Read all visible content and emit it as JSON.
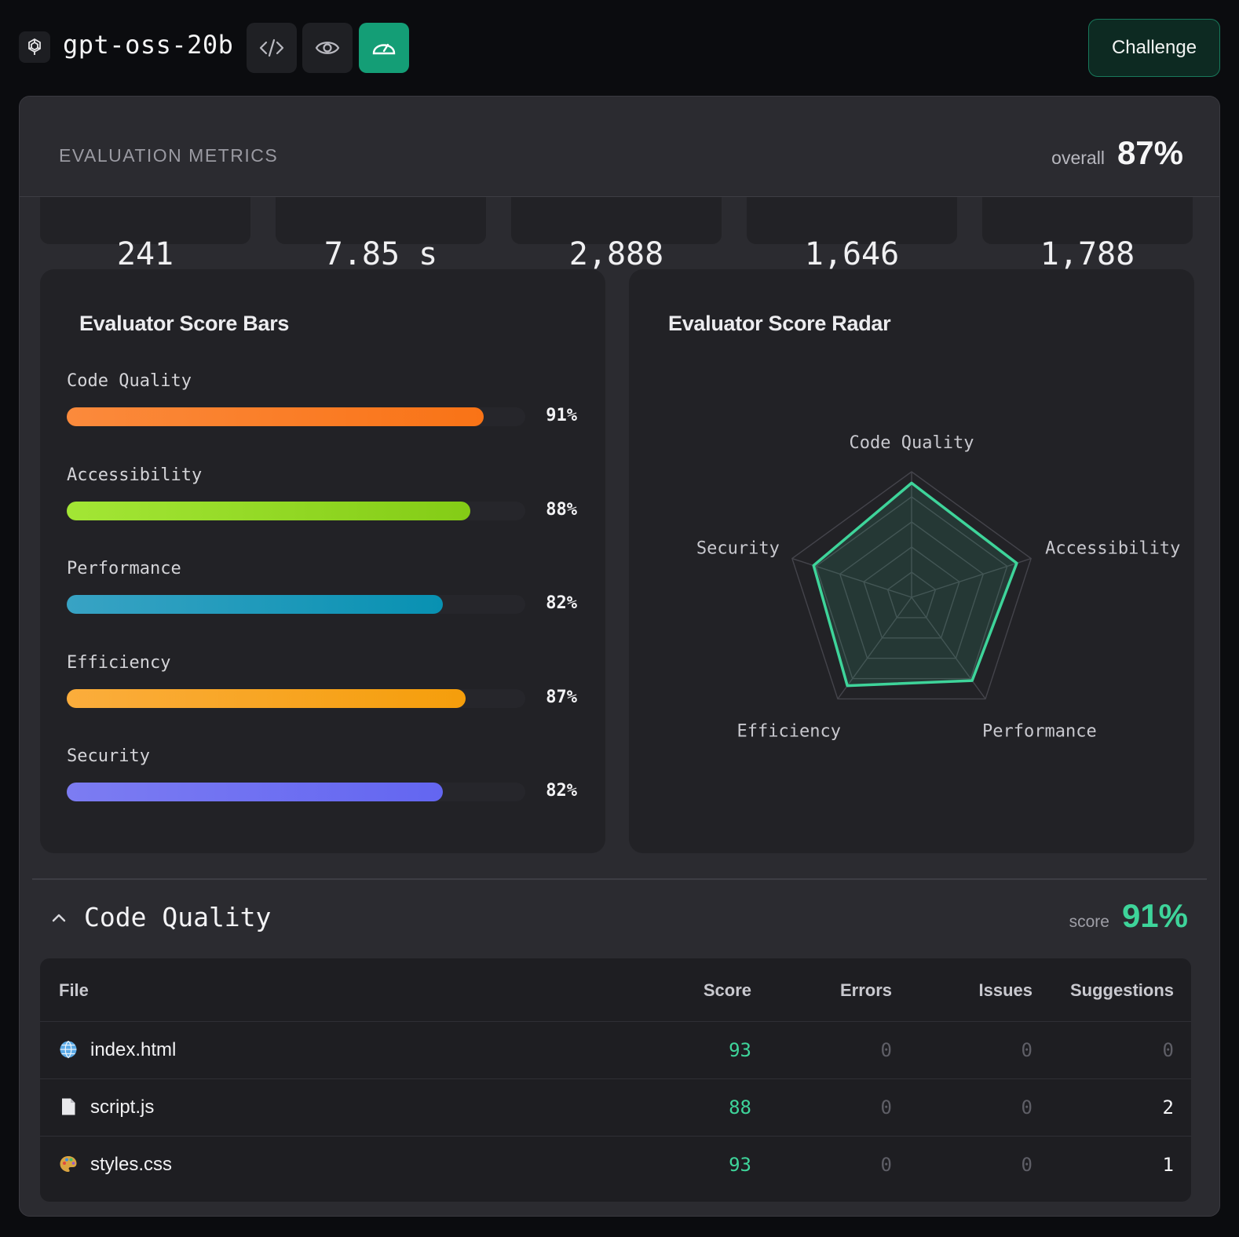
{
  "header": {
    "model_name": "gpt-oss-20b",
    "logo_icon": "openai-logo-icon",
    "tools": [
      {
        "icon": "code-icon",
        "active": false
      },
      {
        "icon": "eye-icon",
        "active": false
      },
      {
        "icon": "gauge-icon",
        "active": true
      }
    ],
    "challenge_label": "Challenge"
  },
  "metrics": {
    "title": "EVALUATION METRICS",
    "overall_label": "overall",
    "overall_value": "87%",
    "stats": [
      "241",
      "7.85 s",
      "2,888",
      "1,646",
      "1,788"
    ]
  },
  "bars_card": {
    "title": "Evaluator Score Bars",
    "items": [
      {
        "label": "Code Quality",
        "value": 91,
        "display": "91%",
        "color_from": "#fb8a3c",
        "color_to": "#f97316"
      },
      {
        "label": "Accessibility",
        "value": 88,
        "display": "88%",
        "color_from": "#a3e635",
        "color_to": "#84cc16"
      },
      {
        "label": "Performance",
        "value": 82,
        "display": "82%",
        "color_from": "#38a3c4",
        "color_to": "#0891b2"
      },
      {
        "label": "Efficiency",
        "value": 87,
        "display": "87%",
        "color_from": "#fbad3c",
        "color_to": "#f59e0b"
      },
      {
        "label": "Security",
        "value": 82,
        "display": "82%",
        "color_from": "#7c7cf2",
        "color_to": "#6366f1"
      }
    ]
  },
  "radar_card": {
    "title": "Evaluator Score Radar",
    "axes": [
      "Code Quality",
      "Accessibility",
      "Performance",
      "Efficiency",
      "Security"
    ]
  },
  "chart_data": {
    "type": "radar",
    "categories": [
      "Code Quality",
      "Accessibility",
      "Performance",
      "Efficiency",
      "Security"
    ],
    "values": [
      91,
      88,
      82,
      87,
      82
    ],
    "range": [
      0,
      100
    ],
    "rings": 5,
    "line_color": "#3ed49a"
  },
  "code_quality": {
    "title": "Code Quality",
    "score_label": "score",
    "score_value": "91%",
    "columns": [
      "File",
      "Score",
      "Errors",
      "Issues",
      "Suggestions"
    ],
    "rows": [
      {
        "icon": "globe-icon",
        "file": "index.html",
        "score": "93",
        "errors": "0",
        "issues": "0",
        "suggestions": "0"
      },
      {
        "icon": "document-icon",
        "file": "script.js",
        "score": "88",
        "errors": "0",
        "issues": "0",
        "suggestions": "2"
      },
      {
        "icon": "palette-icon",
        "file": "styles.css",
        "score": "93",
        "errors": "0",
        "issues": "0",
        "suggestions": "1"
      }
    ]
  }
}
